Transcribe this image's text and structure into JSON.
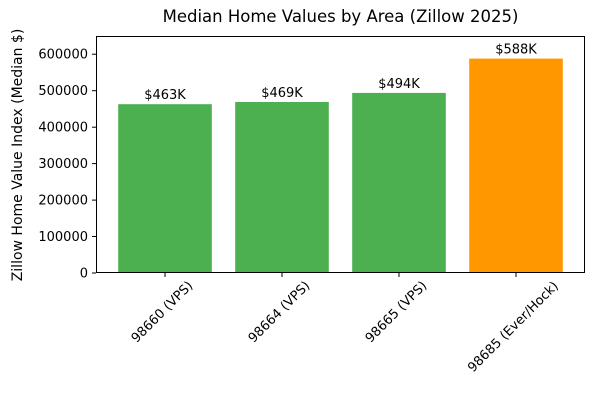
{
  "figure": {
    "background": "#ffffff",
    "spine_color": "#000000",
    "text_color": "#000000"
  },
  "chart_data": {
    "type": "bar",
    "title": "Median Home Values by Area (Zillow 2025)",
    "xlabel": "",
    "ylabel": "Zillow Home Value Index (Median $)",
    "categories": [
      "98660 (VPS)",
      "98664 (VPS)",
      "98665 (VPS)",
      "98685 (Ever/Hock)"
    ],
    "values": [
      463000,
      469000,
      494000,
      588000
    ],
    "bar_labels": [
      "$463K",
      "$469K",
      "$494K",
      "$588K"
    ],
    "bar_colors": [
      "#4caf50",
      "#4caf50",
      "#4caf50",
      "#ff9800"
    ],
    "ylim": [
      0,
      650000
    ],
    "yticks": [
      0,
      100000,
      200000,
      300000,
      400000,
      500000,
      600000
    ],
    "xtick_rotation_deg": 45,
    "grid": false,
    "legend_position": "none"
  }
}
